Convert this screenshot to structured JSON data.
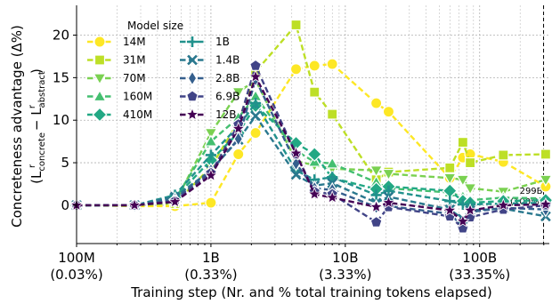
{
  "chart_data": {
    "type": "line",
    "xscale": "log",
    "xlim": [
      100000000,
      330000000000
    ],
    "ylim": [
      -4.5,
      23.5
    ],
    "grid": true,
    "legend_position": "top-left",
    "legend_title": "Model size",
    "xlabel": "Training step (Nr. and % total training tokens elapsed)",
    "ylabel_line1": "Concreteness advantage (Δ%)",
    "ylabel_line2_main": "(L",
    "ylabel_sub1": "concrete",
    "ylabel_sup1": "r",
    "ylabel_minus": " − L",
    "ylabel_sub2": "abstract",
    "ylabel_sup2": "r",
    "ylabel_close": ")",
    "x_ticks": [
      {
        "value": 100000000,
        "line1": "100M",
        "line2": "(0.03%)"
      },
      {
        "value": 1000000000,
        "line1": "1B",
        "line2": "(0.33%)"
      },
      {
        "value": 10000000000,
        "line1": "10B",
        "line2": "(3.33%)"
      },
      {
        "value": 100000000000,
        "line1": "100B",
        "line2": "(33.35%)"
      }
    ],
    "y_ticks": [
      0,
      5,
      10,
      15,
      20
    ],
    "vline": {
      "value": 299000000000,
      "label1": "299B",
      "label2": "(100%)"
    },
    "x": [
      100000000,
      270000000,
      540000000,
      1000000000,
      1600000000,
      2150000000,
      4300000000,
      5900000000,
      8000000000,
      17000000000,
      21000000000,
      60000000000,
      75000000000,
      85000000000,
      150000000000,
      310000000000
    ],
    "series": [
      {
        "name": "14M",
        "color": "#fde725",
        "marker": "circle",
        "values": [
          0,
          -0.1,
          -0.1,
          0.3,
          6.0,
          8.5,
          16.0,
          16.4,
          16.6,
          12.0,
          11.0,
          3.2,
          5.6,
          6.0,
          5.1,
          2.2
        ]
      },
      {
        "name": "31M",
        "color": "#bddf26",
        "marker": "square",
        "values": [
          0,
          0,
          0.2,
          4.5,
          9.8,
          15.7,
          21.2,
          13.3,
          10.7,
          3.0,
          3.9,
          4.4,
          7.4,
          5.0,
          5.9,
          6.0
        ]
      },
      {
        "name": "70M",
        "color": "#7ad151",
        "marker": "triangle-down",
        "values": [
          0,
          0,
          0.3,
          8.5,
          13.3,
          14.7,
          5.2,
          4.7,
          4.3,
          4.1,
          3.7,
          3.2,
          3.0,
          2.0,
          1.6,
          3.0
        ]
      },
      {
        "name": "160M",
        "color": "#44bf70",
        "marker": "triangle-up",
        "values": [
          0,
          0,
          0.7,
          7.5,
          10.3,
          12.8,
          6.4,
          5.1,
          4.9,
          2.7,
          2.0,
          1.5,
          1.0,
          0.6,
          0.9,
          0.8
        ]
      },
      {
        "name": "410M",
        "color": "#22a884",
        "marker": "diamond",
        "values": [
          0,
          0,
          0.9,
          5.3,
          8.5,
          11.7,
          7.3,
          6.0,
          3.2,
          1.9,
          2.2,
          1.7,
          0.5,
          0.3,
          0.5,
          0.6
        ]
      },
      {
        "name": "1B",
        "color": "#21918c",
        "marker": "plus",
        "values": [
          0,
          0,
          1.2,
          5.9,
          9.3,
          12.0,
          4.1,
          3.0,
          3.3,
          1.2,
          1.7,
          0.5,
          0.1,
          0.1,
          0.2,
          0.3
        ]
      },
      {
        "name": "1.4B",
        "color": "#2a788e",
        "marker": "x",
        "values": [
          0,
          0,
          1.0,
          4.1,
          7.7,
          10.5,
          3.6,
          2.3,
          2.6,
          0.3,
          1.0,
          -0.5,
          -1.6,
          -0.6,
          -0.4,
          -1.3
        ]
      },
      {
        "name": "2.8B",
        "color": "#355f8d",
        "marker": "thin-diamond",
        "values": [
          0,
          0,
          0.7,
          4.1,
          7.8,
          14.8,
          4.9,
          2.0,
          1.8,
          -0.2,
          -0.1,
          -1.0,
          -2.5,
          -0.8,
          -0.3,
          -0.5
        ]
      },
      {
        "name": "6.9B",
        "color": "#414487",
        "marker": "pentagon",
        "values": [
          0,
          0,
          0.5,
          3.8,
          9.5,
          16.4,
          6.0,
          1.6,
          1.3,
          -2.0,
          -0.2,
          -1.3,
          -2.7,
          -1.4,
          -0.5,
          0.0
        ]
      },
      {
        "name": "12B",
        "color": "#440154",
        "marker": "star",
        "values": [
          0,
          0,
          0.4,
          3.5,
          9.0,
          15.1,
          6.1,
          1.3,
          0.9,
          -0.2,
          0.3,
          -0.6,
          -1.9,
          -0.6,
          0.0,
          0.1
        ]
      }
    ]
  }
}
